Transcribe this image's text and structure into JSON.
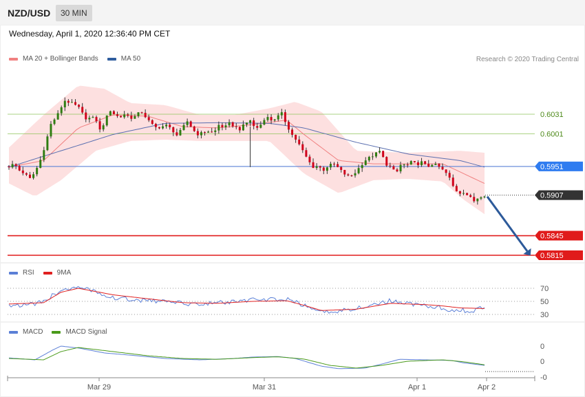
{
  "header": {
    "pair": "NZD/USD",
    "timeframe": "30 MIN"
  },
  "datetime": "Wednesday, April 1, 2020 12:36:40 PM CET",
  "legend_main": [
    {
      "label": "MA 20 + Bollinger Bands",
      "color": "#f08080"
    },
    {
      "label": "MA 50",
      "color": "#2f5d9e"
    }
  ],
  "credit": "Research © 2020 Trading Central",
  "legend_rsi": [
    {
      "label": "RSI",
      "color": "#5b7fd6"
    },
    {
      "label": "9MA",
      "color": "#e02020"
    }
  ],
  "legend_macd": [
    {
      "label": "MACD",
      "color": "#5b7fd6"
    },
    {
      "label": "MACD Signal",
      "color": "#4a9a1a"
    }
  ],
  "colors": {
    "bull": "#2f7d12",
    "bear": "#d0021b",
    "band": "#fde0e0",
    "ma20": "#f08080",
    "ma50": "#5a6fb0"
  },
  "chart_data": [
    {
      "type": "candlestick",
      "title": "NZD/USD 30 MIN",
      "x_ticks": [
        "Mar 29",
        "Mar 31",
        "Apr 1",
        "Apr 2"
      ],
      "ylim": [
        0.5795,
        0.6075
      ],
      "current_price": 0.5907,
      "levels": [
        {
          "value": 0.6031,
          "label": "0.6031",
          "type": "resistance"
        },
        {
          "value": 0.6001,
          "label": "0.6001",
          "type": "resistance"
        },
        {
          "value": 0.5951,
          "label": "0.5951",
          "type": "pivot"
        },
        {
          "value": 0.5907,
          "label": "0.5907",
          "type": "last"
        },
        {
          "value": 0.5845,
          "label": "0.5845",
          "type": "target"
        },
        {
          "value": 0.5815,
          "label": "0.5815",
          "type": "target"
        }
      ],
      "forecast_arrow": {
        "from": 0.5907,
        "to": 0.5815,
        "direction": "down"
      },
      "close_path": [
        [
          0,
          0.5951
        ],
        [
          3,
          0.5955
        ],
        [
          6,
          0.5945
        ],
        [
          9,
          0.594
        ],
        [
          12,
          0.5932
        ],
        [
          15,
          0.5942
        ],
        [
          18,
          0.596
        ],
        [
          21,
          0.5985
        ],
        [
          24,
          0.6015
        ],
        [
          28,
          0.603
        ],
        [
          32,
          0.6052
        ],
        [
          36,
          0.6048
        ],
        [
          40,
          0.6042
        ],
        [
          44,
          0.6025
        ],
        [
          48,
          0.6025
        ],
        [
          50,
          0.6025
        ],
        [
          52,
          0.6005
        ],
        [
          55,
          0.6018
        ],
        [
          58,
          0.6038
        ],
        [
          61,
          0.603
        ],
        [
          64,
          0.6026
        ],
        [
          67,
          0.6032
        ],
        [
          70,
          0.6025
        ],
        [
          73,
          0.6028
        ],
        [
          76,
          0.6036
        ],
        [
          79,
          0.6026
        ],
        [
          82,
          0.6016
        ],
        [
          85,
          0.601
        ],
        [
          88,
          0.6012
        ],
        [
          91,
          0.6014
        ],
        [
          94,
          0.6007
        ],
        [
          97,
          0.5998
        ],
        [
          100,
          0.601
        ],
        [
          103,
          0.6021
        ],
        [
          106,
          0.6007
        ],
        [
          109,
          0.6
        ],
        [
          112,
          0.6003
        ],
        [
          115,
          0.6005
        ],
        [
          118,
          0.6002
        ],
        [
          121,
          0.6015
        ],
        [
          124,
          0.601
        ],
        [
          127,
          0.6017
        ],
        [
          130,
          0.6012
        ],
        [
          133,
          0.6008
        ],
        [
          136,
          0.6016
        ],
        [
          139,
          0.6022
        ],
        [
          142,
          0.6008
        ],
        [
          145,
          0.6015
        ],
        [
          148,
          0.6028
        ],
        [
          151,
          0.6022
        ],
        [
          154,
          0.6025
        ],
        [
          157,
          0.6033
        ],
        [
          160,
          0.6015
        ],
        [
          163,
          0.6
        ],
        [
          166,
          0.599
        ],
        [
          169,
          0.5976
        ],
        [
          172,
          0.5962
        ],
        [
          175,
          0.595
        ],
        [
          178,
          0.5952
        ],
        [
          181,
          0.5945
        ],
        [
          184,
          0.5952
        ],
        [
          187,
          0.5955
        ],
        [
          190,
          0.5948
        ],
        [
          193,
          0.594
        ],
        [
          196,
          0.5935
        ],
        [
          199,
          0.594
        ],
        [
          202,
          0.595
        ],
        [
          205,
          0.596
        ],
        [
          208,
          0.5965
        ],
        [
          211,
          0.597
        ],
        [
          214,
          0.5975
        ],
        [
          217,
          0.5955
        ],
        [
          220,
          0.595
        ],
        [
          223,
          0.594
        ],
        [
          226,
          0.5955
        ],
        [
          229,
          0.5952
        ],
        [
          232,
          0.5958
        ],
        [
          235,
          0.5954
        ],
        [
          238,
          0.5958
        ],
        [
          241,
          0.595
        ],
        [
          244,
          0.5955
        ],
        [
          247,
          0.5952
        ],
        [
          250,
          0.5945
        ],
        [
          253,
          0.5938
        ],
        [
          256,
          0.592
        ],
        [
          259,
          0.591
        ],
        [
          262,
          0.5912
        ],
        [
          265,
          0.5905
        ],
        [
          268,
          0.5898
        ],
        [
          271,
          0.5905
        ],
        [
          274,
          0.5907
        ]
      ],
      "ma20_path": [
        [
          0,
          0.595
        ],
        [
          20,
          0.596
        ],
        [
          40,
          0.601
        ],
        [
          60,
          0.603
        ],
        [
          80,
          0.6028
        ],
        [
          100,
          0.6012
        ],
        [
          120,
          0.601
        ],
        [
          140,
          0.6015
        ],
        [
          160,
          0.6022
        ],
        [
          170,
          0.6
        ],
        [
          190,
          0.596
        ],
        [
          210,
          0.5955
        ],
        [
          230,
          0.5955
        ],
        [
          250,
          0.5955
        ],
        [
          262,
          0.594
        ],
        [
          274,
          0.5925
        ]
      ],
      "ma50_path": [
        [
          0,
          0.595
        ],
        [
          30,
          0.5975
        ],
        [
          60,
          0.6
        ],
        [
          90,
          0.6017
        ],
        [
          120,
          0.6018
        ],
        [
          150,
          0.6017
        ],
        [
          170,
          0.601
        ],
        [
          200,
          0.5988
        ],
        [
          230,
          0.597
        ],
        [
          260,
          0.596
        ],
        [
          274,
          0.595
        ]
      ],
      "band_upper": [
        [
          0,
          0.598
        ],
        [
          20,
          0.603
        ],
        [
          40,
          0.6075
        ],
        [
          55,
          0.607
        ],
        [
          70,
          0.6048
        ],
        [
          90,
          0.6045
        ],
        [
          110,
          0.603
        ],
        [
          130,
          0.603
        ],
        [
          150,
          0.604
        ],
        [
          165,
          0.605
        ],
        [
          180,
          0.6035
        ],
        [
          200,
          0.5975
        ],
        [
          230,
          0.5972
        ],
        [
          260,
          0.5975
        ],
        [
          274,
          0.5972
        ]
      ],
      "band_lower": [
        [
          0,
          0.5925
        ],
        [
          15,
          0.5905
        ],
        [
          30,
          0.593
        ],
        [
          50,
          0.5975
        ],
        [
          70,
          0.599
        ],
        [
          90,
          0.5992
        ],
        [
          110,
          0.599
        ],
        [
          130,
          0.599
        ],
        [
          150,
          0.599
        ],
        [
          170,
          0.594
        ],
        [
          190,
          0.591
        ],
        [
          210,
          0.593
        ],
        [
          230,
          0.5932
        ],
        [
          250,
          0.5928
        ],
        [
          262,
          0.59
        ],
        [
          274,
          0.5878
        ]
      ]
    },
    {
      "type": "line",
      "name": "RSI",
      "ylim": [
        20,
        80
      ],
      "y_ticks": [
        "70",
        "50",
        "30"
      ],
      "series": [
        {
          "name": "RSI",
          "values": [
            [
              0,
              45
            ],
            [
              10,
              44
            ],
            [
              20,
              49
            ],
            [
              30,
              68
            ],
            [
              40,
              70
            ],
            [
              50,
              66
            ],
            [
              60,
              55
            ],
            [
              70,
              53
            ],
            [
              80,
              51
            ],
            [
              90,
              50
            ],
            [
              100,
              47
            ],
            [
              110,
              46
            ],
            [
              120,
              48
            ],
            [
              130,
              49
            ],
            [
              140,
              52
            ],
            [
              150,
              53
            ],
            [
              160,
              53
            ],
            [
              170,
              44
            ],
            [
              180,
              33
            ],
            [
              190,
              35
            ],
            [
              200,
              40
            ],
            [
              210,
              45
            ],
            [
              220,
              51
            ],
            [
              230,
              47
            ],
            [
              240,
              43
            ],
            [
              250,
              40
            ],
            [
              255,
              37
            ],
            [
              260,
              38
            ],
            [
              265,
              34
            ],
            [
              274,
              42
            ]
          ]
        },
        {
          "name": "9MA",
          "values": [
            [
              0,
              46
            ],
            [
              20,
              48
            ],
            [
              30,
              64
            ],
            [
              40,
              70
            ],
            [
              60,
              60
            ],
            [
              80,
              54
            ],
            [
              100,
              48
            ],
            [
              120,
              47
            ],
            [
              140,
              50
            ],
            [
              160,
              51
            ],
            [
              170,
              44
            ],
            [
              180,
              36
            ],
            [
              200,
              38
            ],
            [
              220,
              47
            ],
            [
              240,
              45
            ],
            [
              250,
              43
            ],
            [
              260,
              40
            ],
            [
              274,
              39
            ]
          ]
        }
      ]
    },
    {
      "type": "line",
      "name": "MACD",
      "y_ticks": [
        "0",
        "0",
        "-0"
      ],
      "series": [
        {
          "name": "MACD",
          "values": [
            [
              0,
              0.0012
            ],
            [
              15,
              0.0005
            ],
            [
              25,
              0.004
            ],
            [
              30,
              0.0055
            ],
            [
              40,
              0.0048
            ],
            [
              55,
              0.003
            ],
            [
              70,
              0.0022
            ],
            [
              90,
              0.001
            ],
            [
              110,
              0.0005
            ],
            [
              130,
              0.001
            ],
            [
              140,
              0.0015
            ],
            [
              155,
              0.0017
            ],
            [
              165,
              0.001
            ],
            [
              180,
              -0.0018
            ],
            [
              190,
              -0.0027
            ],
            [
              205,
              -0.0025
            ],
            [
              215,
              -0.001
            ],
            [
              225,
              0.0007
            ],
            [
              240,
              0.0005
            ],
            [
              255,
              0.0003
            ],
            [
              262,
              -0.0006
            ],
            [
              274,
              -0.0015
            ]
          ]
        },
        {
          "name": "MACD Signal",
          "values": [
            [
              0,
              0.001
            ],
            [
              20,
              0.0005
            ],
            [
              30,
              0.0035
            ],
            [
              40,
              0.005
            ],
            [
              60,
              0.0035
            ],
            [
              80,
              0.002
            ],
            [
              100,
              0.001
            ],
            [
              120,
              0.0007
            ],
            [
              140,
              0.0013
            ],
            [
              155,
              0.0016
            ],
            [
              170,
              0.0008
            ],
            [
              185,
              -0.0015
            ],
            [
              200,
              -0.0025
            ],
            [
              215,
              -0.0015
            ],
            [
              230,
              0.0
            ],
            [
              250,
              0.0005
            ],
            [
              262,
              -0.0002
            ],
            [
              274,
              -0.0013
            ]
          ]
        }
      ]
    }
  ]
}
